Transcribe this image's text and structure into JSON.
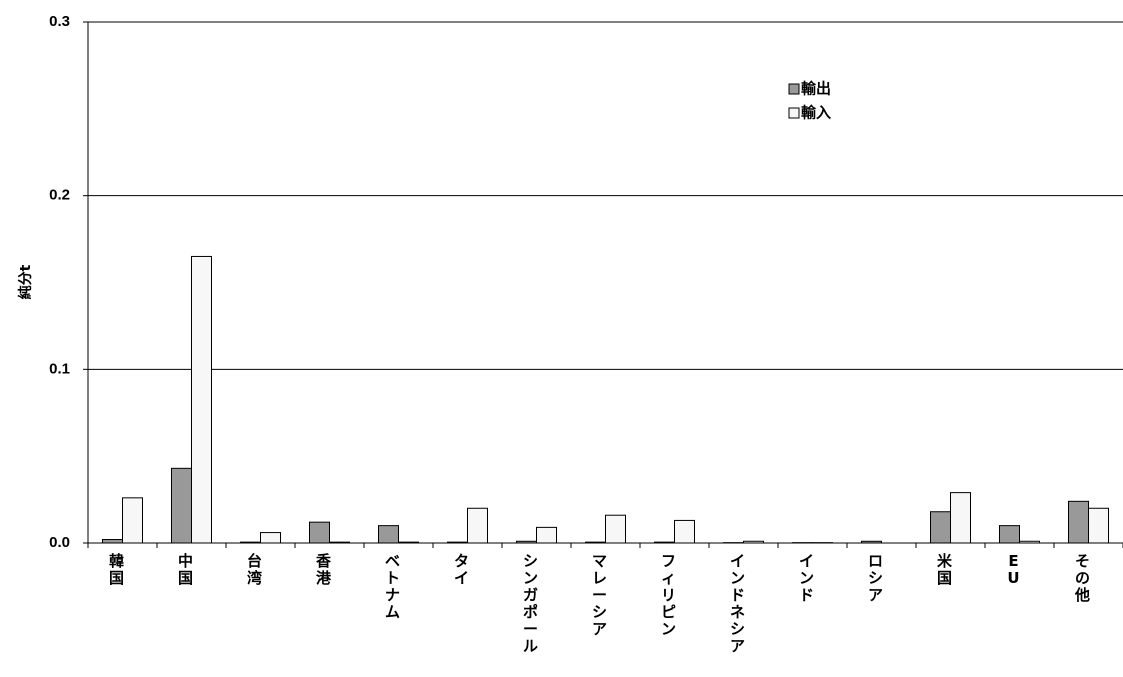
{
  "chart_data": {
    "type": "bar",
    "title": "",
    "ylabel": "純分t",
    "ylim": [
      0,
      0.3
    ],
    "yticks": [
      "0.0",
      "0.1",
      "0.2",
      "0.3"
    ],
    "ytick_values": [
      0,
      0.1,
      0.2,
      0.3
    ],
    "grid": true,
    "legend_position": "top-right",
    "categories": [
      "韓国",
      "中国",
      "台湾",
      "香港",
      "ベトナム",
      "タイ",
      "シンガポール",
      "マレーシア",
      "フィリピン",
      "インドネシア",
      "インド",
      "ロシア",
      "米国",
      "EU",
      "その他"
    ],
    "series": [
      {
        "name": "輸出",
        "color": "#999999",
        "values": [
          0.002,
          0.043,
          0.0005,
          0.012,
          0.01,
          0.0005,
          0.001,
          0.0005,
          0.0005,
          0.0002,
          0.0002,
          0.001,
          0.018,
          0.01,
          0.024
        ]
      },
      {
        "name": "輸入",
        "color": "#f7f7f7",
        "values": [
          0.026,
          0.165,
          0.006,
          0.0005,
          0.0005,
          0.02,
          0.009,
          0.016,
          0.013,
          0.001,
          0.0002,
          0.0,
          0.029,
          0.001,
          0.02
        ]
      }
    ]
  }
}
